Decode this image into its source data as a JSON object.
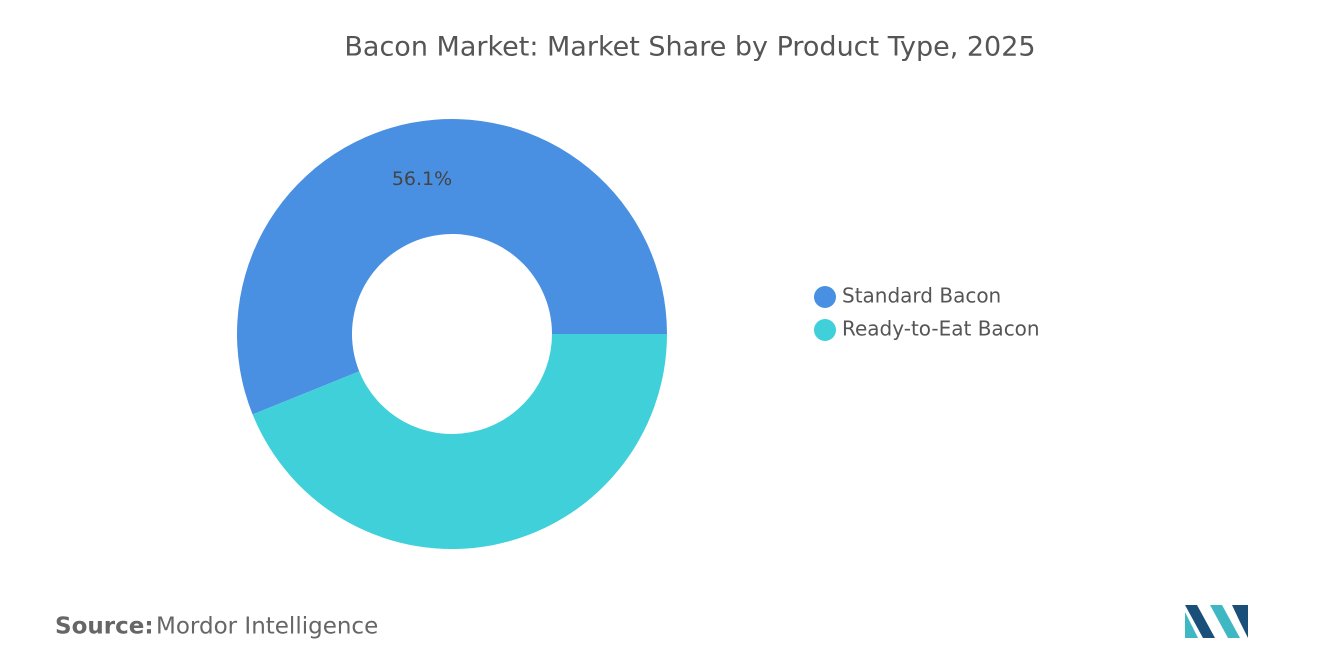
{
  "chart_data": {
    "type": "donut",
    "title": "Bacon Market: Market Share by Product Type, 2025",
    "categories": [
      "Standard Bacon",
      "Ready-to-Eat Bacon"
    ],
    "values": [
      56.1,
      43.9
    ],
    "value_labels": [
      "56.1%",
      null
    ],
    "colors": [
      "#4a90e2",
      "#40d0da"
    ],
    "legend": "right"
  },
  "source": {
    "label": "Source:",
    "text": "Mordor Intelligence"
  }
}
